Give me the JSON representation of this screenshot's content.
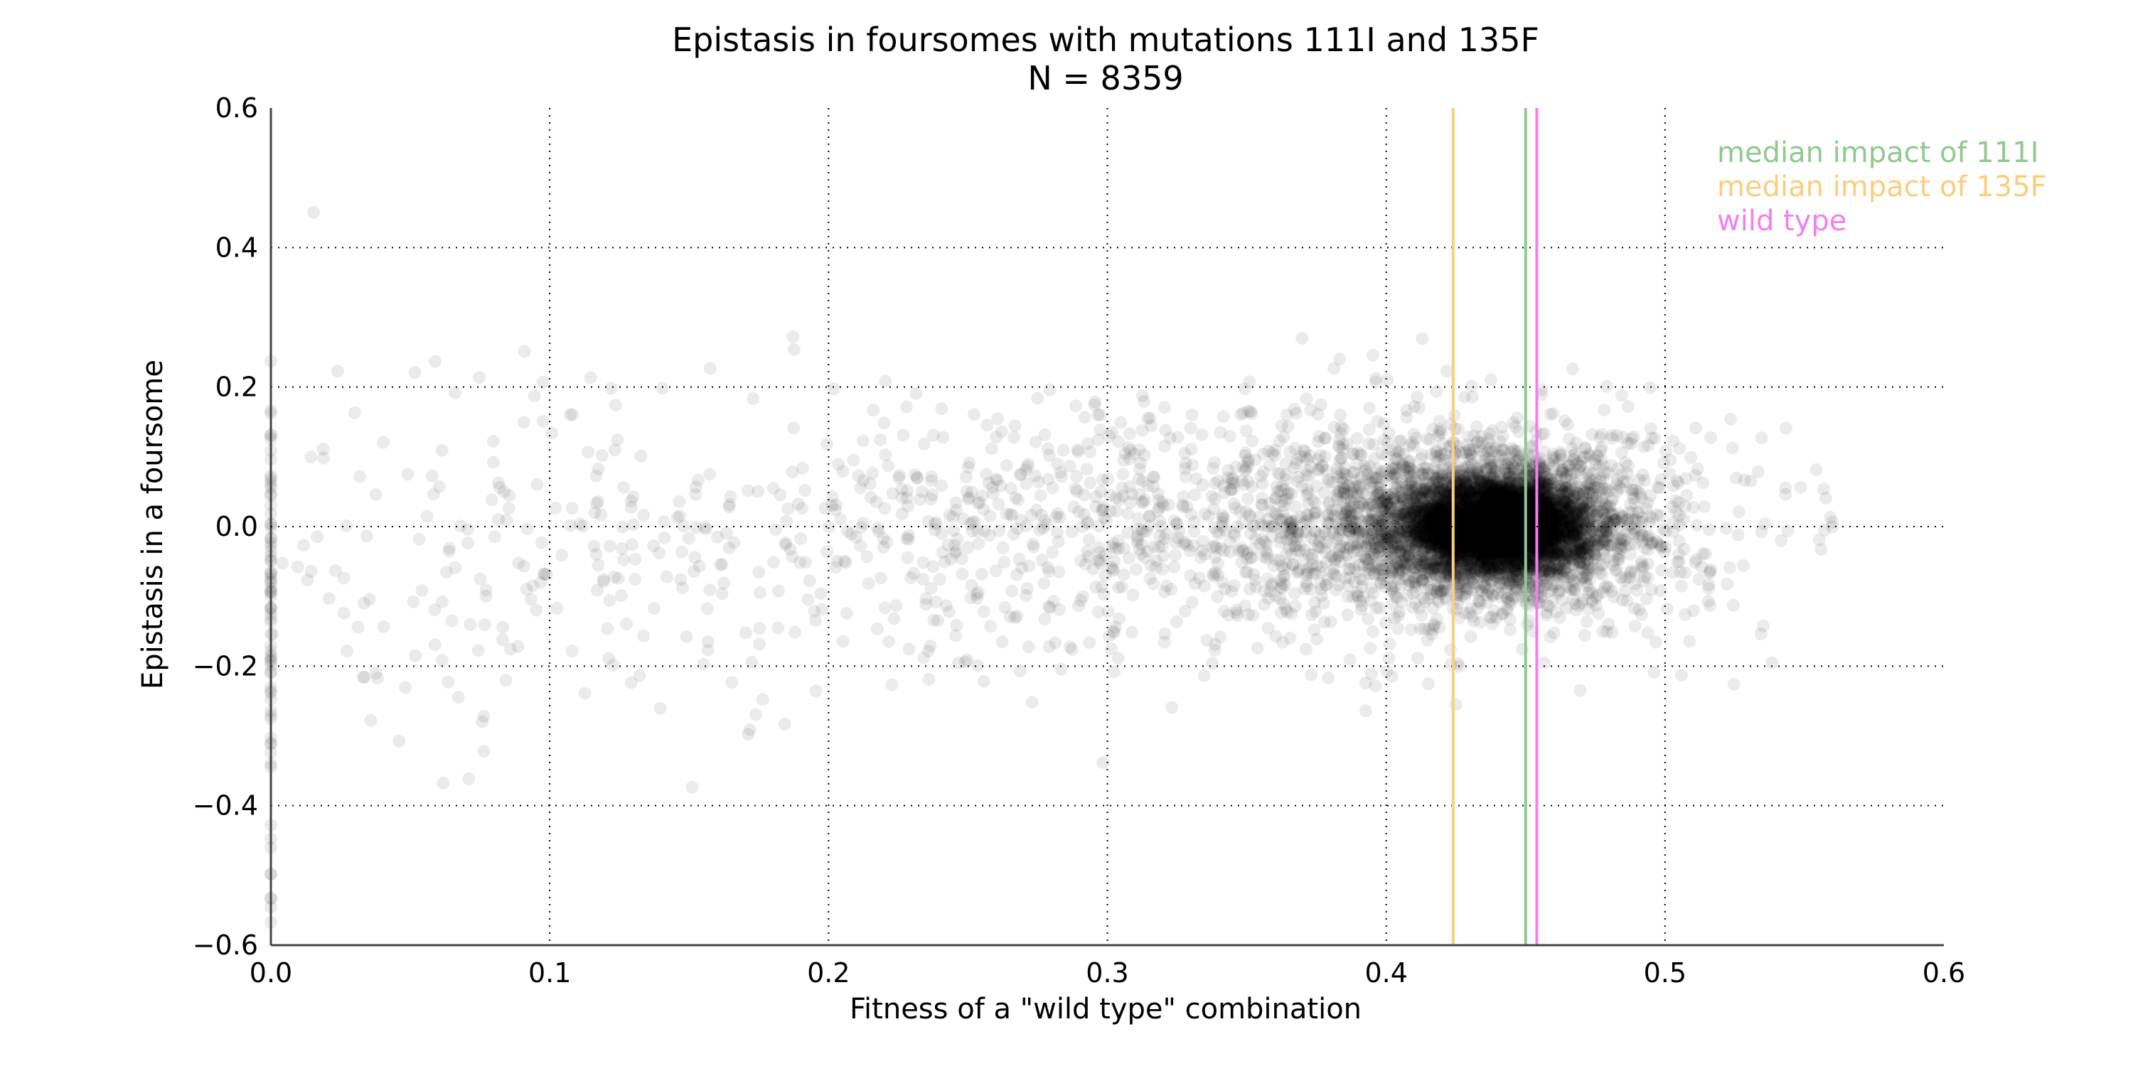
{
  "chart_data": {
    "type": "scatter",
    "title": "Epistasis in foursomes with mutations 111I and 135F",
    "subtitle": "N = 8359",
    "xlabel": "Fitness of a \"wild type\" combination",
    "ylabel": "Epistasis in a foursome",
    "xlim": [
      0.0,
      0.6
    ],
    "ylim": [
      -0.6,
      0.6
    ],
    "x_ticks": [
      0.0,
      0.1,
      0.2,
      0.3,
      0.4,
      0.5,
      0.6
    ],
    "y_ticks": [
      -0.6,
      -0.4,
      -0.2,
      0.0,
      0.2,
      0.4,
      0.6
    ],
    "x_tick_labels": [
      "0.0",
      "0.1",
      "0.2",
      "0.3",
      "0.4",
      "0.5",
      "0.6"
    ],
    "y_tick_labels": [
      "−0.6",
      "−0.4",
      "−0.2",
      "0.0",
      "0.2",
      "0.4",
      "0.6"
    ],
    "grid": true,
    "point_color": "#000000",
    "point_alpha": 0.08,
    "n_points": 8359,
    "vertical_lines": [
      {
        "name": "median impact of 111I",
        "x": 0.45,
        "color": "#8fc98f"
      },
      {
        "name": "median impact of 135F",
        "x": 0.424,
        "color": "#f9ce7e"
      },
      {
        "name": "wild type",
        "x": 0.454,
        "color": "#f080f0"
      }
    ],
    "legend": {
      "placement": "top-right",
      "entries": [
        "median impact of 111I",
        "median impact of 135F",
        "wild type"
      ]
    },
    "point_groups": [
      {
        "center_x": 0.44,
        "center_y": 0.0,
        "sd_x": 0.017,
        "sd_y": 0.035,
        "count": 5200
      },
      {
        "center_x": 0.43,
        "center_y": 0.005,
        "sd_x": 0.04,
        "sd_y": 0.07,
        "count": 2000
      },
      {
        "center_x": 0.33,
        "center_y": 0.0,
        "sd_x": 0.08,
        "sd_y": 0.09,
        "count": 800
      },
      {
        "center_x": 0.12,
        "center_y": -0.05,
        "sd_x": 0.09,
        "sd_y": 0.13,
        "count": 300
      },
      {
        "center_x": 0.0,
        "center_y": -0.2,
        "sd_x": 0.0,
        "sd_y": 0.18,
        "count": 59
      }
    ]
  }
}
